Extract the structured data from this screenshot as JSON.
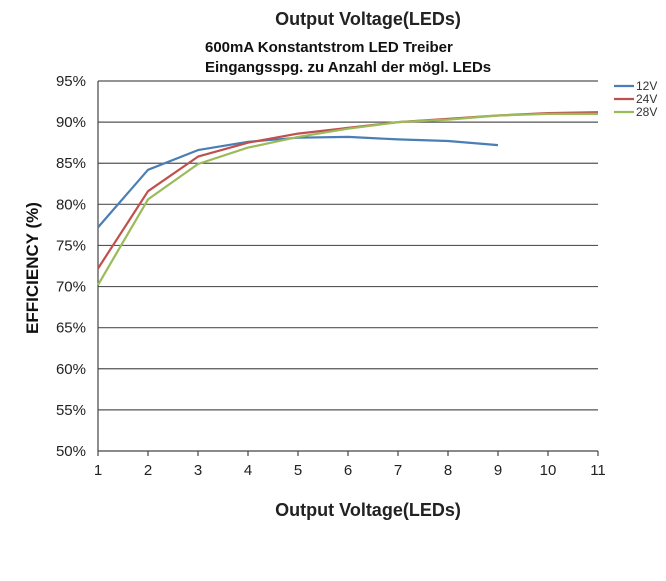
{
  "chart_data": {
    "type": "line",
    "title": "Output Voltage(LEDs)",
    "subtitle_lines": [
      "600mA Konstantstrom LED Treiber",
      "Eingangsspg. zu Anzahl der mögl. LEDs"
    ],
    "xlabel": "Output Voltage(LEDs)",
    "ylabel": "EFFICIENCY (%)",
    "x_ticks": [
      "1",
      "2",
      "3",
      "4",
      "5",
      "6",
      "7",
      "8",
      "9",
      "10",
      "11"
    ],
    "y_ticks": [
      "50%",
      "55%",
      "60%",
      "65%",
      "70%",
      "75%",
      "80%",
      "85%",
      "90%",
      "95%"
    ],
    "xlim": [
      1,
      11
    ],
    "ylim": [
      50,
      95
    ],
    "grid": "horizontal",
    "legend_position": "right",
    "series": [
      {
        "name": "12V",
        "color": "#4a7eb5",
        "x": [
          1,
          2,
          3,
          4,
          5,
          6,
          7,
          8,
          9
        ],
        "y": [
          77.2,
          84.2,
          86.6,
          87.6,
          88.1,
          88.2,
          87.9,
          87.7,
          87.2
        ]
      },
      {
        "name": "24V",
        "color": "#c0504d",
        "x": [
          1,
          2,
          3,
          4,
          5,
          6,
          7,
          8,
          9,
          10,
          11
        ],
        "y": [
          72.2,
          81.6,
          85.8,
          87.5,
          88.6,
          89.3,
          90.0,
          90.4,
          90.8,
          91.1,
          91.2
        ]
      },
      {
        "name": "28V",
        "color": "#9bbb59",
        "x": [
          1,
          2,
          3,
          4,
          5,
          6,
          7,
          8,
          9,
          10,
          11
        ],
        "y": [
          70.2,
          80.6,
          84.9,
          86.9,
          88.2,
          89.2,
          90.0,
          90.3,
          90.8,
          91.0,
          91.0
        ]
      }
    ]
  }
}
